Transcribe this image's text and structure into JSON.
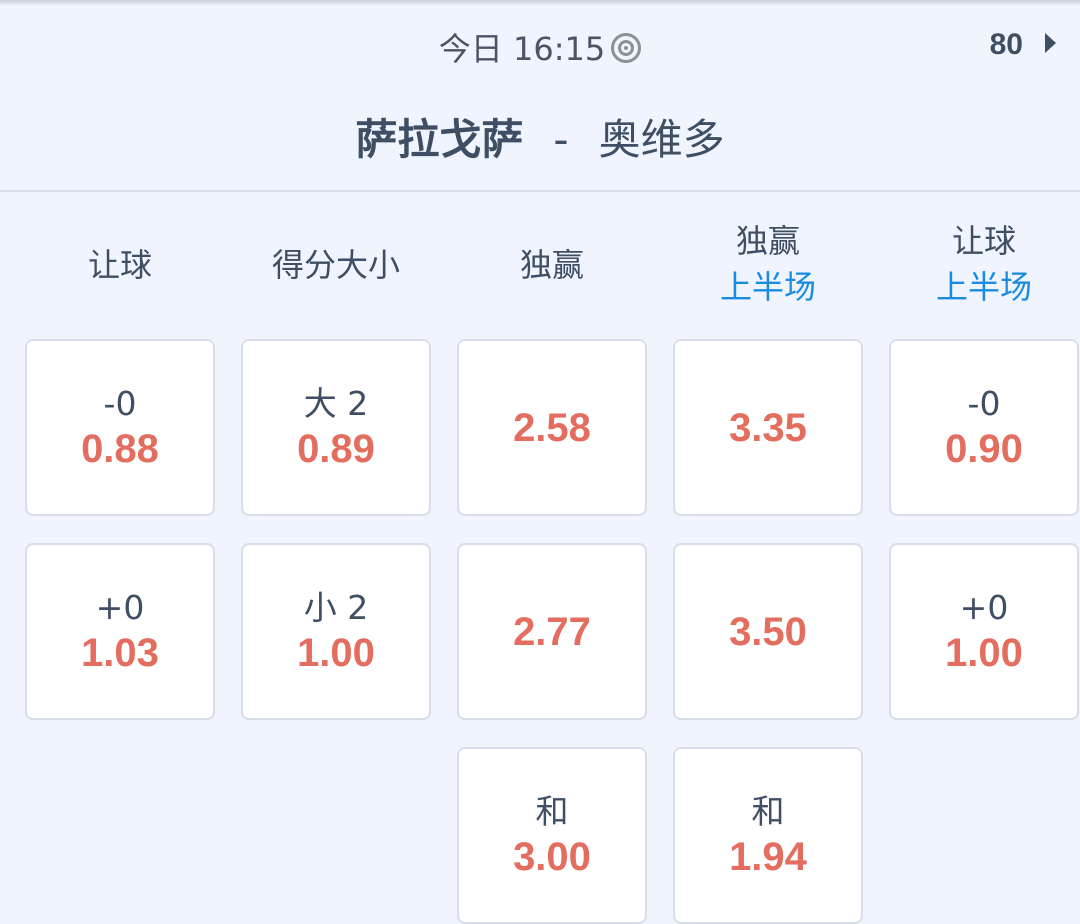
{
  "header": {
    "time": "今日 16:15",
    "count": "80",
    "home": "萨拉戈萨",
    "separator": "-",
    "away": "奥维多"
  },
  "columns": [
    {
      "title": "让球",
      "sub": ""
    },
    {
      "title": "得分大小",
      "sub": ""
    },
    {
      "title": "独赢",
      "sub": ""
    },
    {
      "title": "独赢",
      "sub": "上半场"
    },
    {
      "title": "让球",
      "sub": "上半场"
    }
  ],
  "cells": [
    [
      {
        "label": "-0",
        "odds": "0.88"
      },
      {
        "label": "+0",
        "odds": "1.03"
      }
    ],
    [
      {
        "label": "大 2",
        "odds": "0.89"
      },
      {
        "label": "小 2",
        "odds": "1.00"
      }
    ],
    [
      {
        "label": "",
        "odds": "2.58"
      },
      {
        "label": "",
        "odds": "2.77"
      },
      {
        "label": "和",
        "odds": "3.00"
      }
    ],
    [
      {
        "label": "",
        "odds": "3.35"
      },
      {
        "label": "",
        "odds": "3.50"
      },
      {
        "label": "和",
        "odds": "1.94"
      }
    ],
    [
      {
        "label": "-0",
        "odds": "0.90"
      },
      {
        "label": "+0",
        "odds": "1.00"
      }
    ]
  ],
  "colors": {
    "odds": "#e36d5f",
    "accent": "#1a8ce0",
    "text": "#3f4e63"
  }
}
